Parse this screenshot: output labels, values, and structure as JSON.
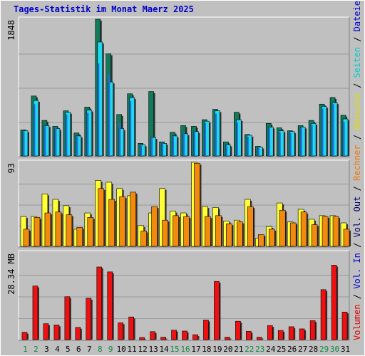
{
  "title": "Tages-Statistik im Monat Maerz 2025",
  "panels": {
    "top": {
      "ymax_label": "1848"
    },
    "mid": {
      "ymax_label": "93"
    },
    "bot": {
      "ymax_label": "28.34 MB"
    }
  },
  "right_legend": [
    {
      "text": "Volumen",
      "color": "#dd0000"
    },
    {
      "text": " / ",
      "color": "#000000"
    },
    {
      "text": "Vol. In",
      "color": "#0000cc"
    },
    {
      "text": " / ",
      "color": "#000000"
    },
    {
      "text": "Vol. Out",
      "color": "#000066"
    },
    {
      "text": " / ",
      "color": "#000000"
    },
    {
      "text": "Rechner",
      "color": "#ee7700"
    },
    {
      "text": " / ",
      "color": "#000000"
    },
    {
      "text": "Besuche",
      "color": "#dddd00"
    },
    {
      "text": " / ",
      "color": "#000000"
    },
    {
      "text": "Seiten",
      "color": "#00cccc"
    },
    {
      "text": " / ",
      "color": "#000000"
    },
    {
      "text": "Dateien",
      "color": "#0000cc"
    },
    {
      "text": " / ",
      "color": "#000000"
    },
    {
      "text": "Anfragen",
      "color": "#006644"
    }
  ],
  "colors": {
    "anfragen": "#127a5a",
    "dateien": "#1a6ed8",
    "seiten": "#22d8f0",
    "besuche": "#ffff33",
    "rechner": "#f28a10",
    "volumen": "#ee1111",
    "title": "#0000cc",
    "weekend": "#118844",
    "weekday": "#000000",
    "background": "#c0c0c0"
  },
  "chart_data": {
    "type": "bar",
    "title": "Tages-Statistik im Monat Maerz 2025",
    "categories": [
      "1",
      "2",
      "3",
      "4",
      "5",
      "6",
      "7",
      "8",
      "9",
      "10",
      "11",
      "12",
      "13",
      "14",
      "15",
      "16",
      "17",
      "18",
      "19",
      "20",
      "21",
      "22",
      "23",
      "24",
      "25",
      "26",
      "27",
      "28",
      "29",
      "30",
      "31"
    ],
    "weekend_days": [
      "1",
      "2",
      "8",
      "9",
      "15",
      "16",
      "22",
      "23",
      "29",
      "30"
    ],
    "panels": [
      {
        "id": "top",
        "ymax": 1848,
        "series": [
          {
            "name": "Anfragen",
            "values": [
              350,
              810,
              480,
              400,
              610,
              310,
              660,
              1848,
              1380,
              560,
              840,
              170,
              870,
              190,
              320,
              410,
              400,
              490,
              630,
              190,
              590,
              290,
              130,
              440,
              380,
              340,
              410,
              480,
              700,
              790,
              550
            ]
          },
          {
            "name": "Dateien",
            "values": [
              330,
              700,
              400,
              380,
              560,
              260,
              580,
              1250,
              1100,
              440,
              740,
              140,
              250,
              180,
              260,
              310,
              330,
              450,
              570,
              140,
              450,
              260,
              110,
              380,
              320,
              310,
              380,
              420,
              640,
              700,
              460
            ]
          },
          {
            "name": "Seiten",
            "values": [
              340,
              750,
              410,
              370,
              590,
              270,
              620,
              1540,
              1000,
              370,
              790,
              150,
              250,
              170,
              270,
              300,
              330,
              470,
              610,
              150,
              490,
              280,
              120,
              390,
              340,
              330,
              390,
              440,
              670,
              720,
              500
            ]
          }
        ]
      },
      {
        "id": "mid",
        "ymax": 93,
        "series": [
          {
            "name": "Besuche",
            "values": [
              33,
              33,
              58,
              52,
              45,
              19,
              37,
              73,
              71,
              64,
              56,
              23,
              37,
              64,
              39,
              37,
              93,
              44,
              43,
              28,
              29,
              52,
              9,
              22,
              48,
              27,
              41,
              30,
              34,
              34,
              26
            ]
          },
          {
            "name": "Rechner",
            "values": [
              19,
              32,
              37,
              38,
              35,
              21,
              32,
              64,
              52,
              55,
              60,
              17,
              44,
              29,
              34,
              33,
              92,
              33,
              34,
              25,
              27,
              44,
              13,
              19,
              40,
              26,
              38,
              24,
              33,
              33,
              19
            ]
          }
        ]
      },
      {
        "id": "bot",
        "ymax": 28.34,
        "yunit": "MB",
        "series": [
          {
            "name": "Volumen",
            "values": [
              2.4,
              17.5,
              5.2,
              4.8,
              14.0,
              4.0,
              13.5,
              23.7,
              22.1,
              5.5,
              7.4,
              0.7,
              2.6,
              0.8,
              3.1,
              2.8,
              1.6,
              6.4,
              19.0,
              0.8,
              6.0,
              2.7,
              0.8,
              4.6,
              3.0,
              4.2,
              3.5,
              6.2,
              16.3,
              24.3,
              9.0
            ]
          }
        ]
      }
    ]
  }
}
